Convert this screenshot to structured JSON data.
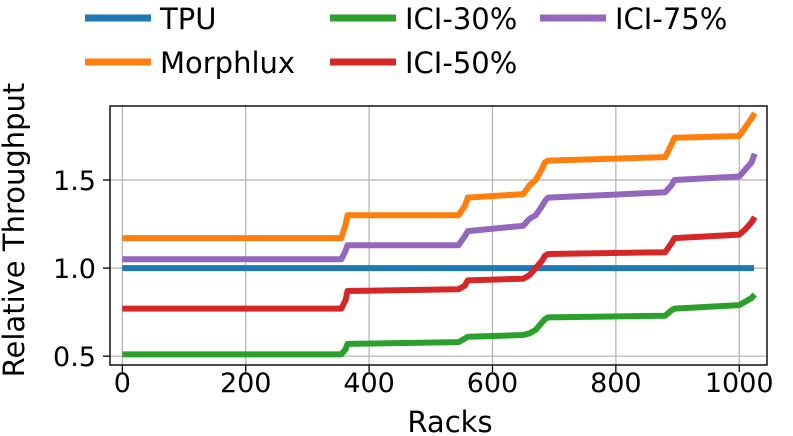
{
  "chart_data": {
    "type": "line",
    "xlabel": "Racks",
    "ylabel": "Relative Throughput",
    "xlim": [
      -20,
      1045
    ],
    "ylim": [
      0.45,
      1.92
    ],
    "xticks": [
      0,
      200,
      400,
      600,
      800,
      1000
    ],
    "yticks": [
      0.5,
      1.0,
      1.5
    ],
    "ytick_labels": [
      "0.5",
      "1.0",
      "1.5"
    ],
    "grid": true,
    "legend_position": "top",
    "series": [
      {
        "name": "TPU",
        "color": "#1f77b4",
        "x": [
          0,
          1024
        ],
        "y": [
          1.0,
          1.0
        ]
      },
      {
        "name": "Morphlux",
        "color": "#ff7f0e",
        "x": [
          0,
          355,
          362,
          365,
          545,
          555,
          560,
          650,
          660,
          670,
          680,
          685,
          690,
          880,
          890,
          895,
          1000,
          1010,
          1020,
          1025
        ],
        "y": [
          1.17,
          1.17,
          1.25,
          1.3,
          1.3,
          1.35,
          1.4,
          1.42,
          1.47,
          1.5,
          1.56,
          1.6,
          1.61,
          1.63,
          1.7,
          1.74,
          1.75,
          1.8,
          1.85,
          1.88
        ]
      },
      {
        "name": "ICI-75%",
        "color": "#9467bd",
        "x": [
          0,
          355,
          362,
          365,
          545,
          555,
          560,
          650,
          660,
          670,
          680,
          685,
          690,
          880,
          890,
          895,
          1000,
          1010,
          1020,
          1025
        ],
        "y": [
          1.05,
          1.05,
          1.1,
          1.13,
          1.13,
          1.18,
          1.21,
          1.24,
          1.28,
          1.3,
          1.35,
          1.38,
          1.4,
          1.43,
          1.47,
          1.5,
          1.52,
          1.56,
          1.6,
          1.65
        ]
      },
      {
        "name": "ICI-50%",
        "color": "#d62728",
        "x": [
          0,
          355,
          362,
          365,
          545,
          555,
          560,
          650,
          660,
          670,
          680,
          685,
          690,
          880,
          890,
          895,
          1000,
          1010,
          1020,
          1025
        ],
        "y": [
          0.77,
          0.77,
          0.82,
          0.87,
          0.88,
          0.9,
          0.93,
          0.94,
          0.96,
          1.0,
          1.04,
          1.07,
          1.08,
          1.09,
          1.14,
          1.17,
          1.19,
          1.22,
          1.26,
          1.29
        ]
      },
      {
        "name": "ICI-30%",
        "color": "#2ca02c",
        "x": [
          0,
          355,
          362,
          365,
          545,
          555,
          560,
          650,
          660,
          670,
          680,
          685,
          690,
          880,
          890,
          895,
          1000,
          1010,
          1020,
          1025
        ],
        "y": [
          0.51,
          0.51,
          0.54,
          0.57,
          0.58,
          0.6,
          0.61,
          0.62,
          0.63,
          0.65,
          0.69,
          0.71,
          0.72,
          0.73,
          0.76,
          0.77,
          0.79,
          0.81,
          0.83,
          0.85
        ]
      }
    ],
    "legend": [
      {
        "label": "TPU",
        "color": "#1f77b4"
      },
      {
        "label": "ICI-30%",
        "color": "#2ca02c"
      },
      {
        "label": "ICI-75%",
        "color": "#9467bd"
      },
      {
        "label": "Morphlux",
        "color": "#ff7f0e"
      },
      {
        "label": "ICI-50%",
        "color": "#d62728"
      }
    ]
  }
}
